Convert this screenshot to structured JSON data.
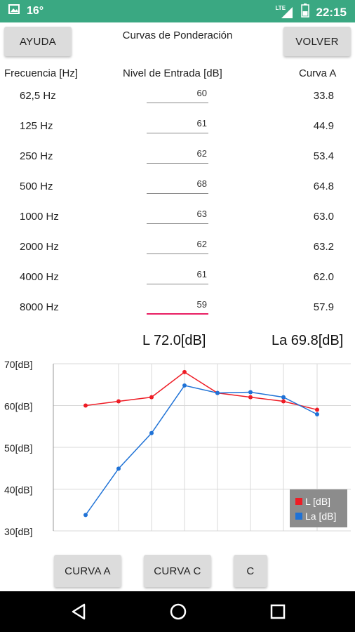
{
  "status": {
    "temperature": "16°",
    "network": "LTE",
    "time": "22:15"
  },
  "header": {
    "help_label": "AYUDA",
    "title": "Curvas de Ponderación",
    "back_label": "VOLVER"
  },
  "columns": {
    "frequency": "Frecuencia [Hz]",
    "input_level": "Nivel de Entrada [dB]",
    "curve": "Curva A"
  },
  "rows": [
    {
      "freq": "62,5 Hz",
      "input": "60",
      "curve": "33.8"
    },
    {
      "freq": "125 Hz",
      "input": "61",
      "curve": "44.9"
    },
    {
      "freq": "250 Hz",
      "input": "62",
      "curve": "53.4"
    },
    {
      "freq": "500 Hz",
      "input": "68",
      "curve": "64.8"
    },
    {
      "freq": "1000 Hz",
      "input": "63",
      "curve": "63.0"
    },
    {
      "freq": "2000 Hz",
      "input": "62",
      "curve": "63.2"
    },
    {
      "freq": "4000 Hz",
      "input": "61",
      "curve": "62.0"
    },
    {
      "freq": "8000 Hz",
      "input": "59",
      "curve": "57.9"
    }
  ],
  "totals": {
    "l": "L 72.0[dB]",
    "la": "La 69.8[dB]"
  },
  "buttons": {
    "curva_a": "CURVA A",
    "curva_c": "CURVA C",
    "c": "C"
  },
  "chart_data": {
    "type": "line",
    "x": [
      1,
      2,
      3,
      4,
      5,
      6,
      7,
      8
    ],
    "ylim": [
      30,
      70
    ],
    "y_ticks": [
      "30[dB]",
      "40[dB]",
      "50[dB]",
      "60[dB]",
      "70[dB]"
    ],
    "grid": true,
    "legend_position": "bottom-right",
    "series": [
      {
        "name": "L [dB]",
        "color": "#ee1c25",
        "values": [
          60,
          61,
          62,
          68,
          63,
          62,
          61,
          59
        ]
      },
      {
        "name": "La [dB]",
        "color": "#1f72d6",
        "values": [
          33.8,
          44.9,
          53.4,
          64.8,
          63.0,
          63.2,
          62.0,
          57.9
        ]
      }
    ]
  },
  "nav": {
    "back": "back-icon",
    "home": "home-icon",
    "recents": "recents-icon"
  }
}
